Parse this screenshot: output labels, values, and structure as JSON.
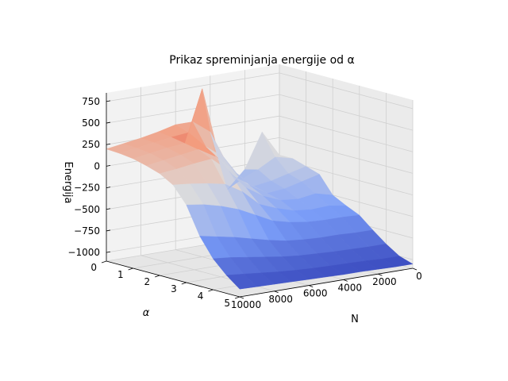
{
  "chart_data": {
    "type": "surface3d",
    "title": "Prikaz spreminjanja energije od α",
    "xlabel": "N",
    "ylabel": "α",
    "zlabel": "Energija",
    "x_ticks": [
      "0",
      "2000",
      "4000",
      "6000",
      "8000",
      "10000"
    ],
    "y_ticks": [
      "0",
      "1",
      "2",
      "3",
      "4",
      "5"
    ],
    "z_ticks": [
      "−1000",
      "−750",
      "−500",
      "−250",
      "0",
      "250",
      "500",
      "750"
    ],
    "xlim": [
      0,
      10000
    ],
    "ylim": [
      0,
      5
    ],
    "zlim": [
      -1100,
      850
    ],
    "colormap": "coolwarm",
    "grid": true,
    "x": [
      0,
      1000,
      2000,
      3000,
      4000,
      5000,
      6000,
      7000,
      8000,
      9000,
      10000
    ],
    "y": [
      0,
      0.5,
      1,
      1.5,
      2,
      2.5,
      3,
      3.5,
      4,
      4.5,
      5
    ],
    "z": [
      [
        -200,
        100,
        -300,
        -500,
        200,
        350,
        350,
        300,
        260,
        230,
        200
      ],
      [
        -200,
        -150,
        -260,
        -350,
        -50,
        100,
        300,
        280,
        250,
        220,
        190
      ],
      [
        -250,
        -300,
        -350,
        -380,
        -200,
        0,
        850,
        250,
        230,
        200,
        170
      ],
      [
        -300,
        -350,
        -400,
        -420,
        -300,
        -150,
        100,
        220,
        190,
        160,
        130
      ],
      [
        -500,
        -450,
        -480,
        -460,
        -380,
        -250,
        -20,
        150,
        130,
        100,
        80
      ],
      [
        -580,
        -550,
        -560,
        -540,
        -480,
        -400,
        -220,
        -100,
        -60,
        -30,
        -10
      ],
      [
        -650,
        -640,
        -640,
        -630,
        -600,
        -550,
        -450,
        -350,
        -280,
        -230,
        -200
      ],
      [
        -780,
        -780,
        -770,
        -770,
        -760,
        -740,
        -700,
        -650,
        -600,
        -560,
        -520
      ],
      [
        -900,
        -900,
        -895,
        -890,
        -880,
        -870,
        -850,
        -820,
        -790,
        -760,
        -740
      ],
      [
        -1000,
        -1000,
        -990,
        -985,
        -980,
        -975,
        -965,
        -950,
        -930,
        -910,
        -890
      ],
      [
        -1050,
        -1050,
        -1045,
        -1040,
        -1040,
        -1035,
        -1030,
        -1025,
        -1020,
        -1015,
        -1010
      ]
    ]
  }
}
